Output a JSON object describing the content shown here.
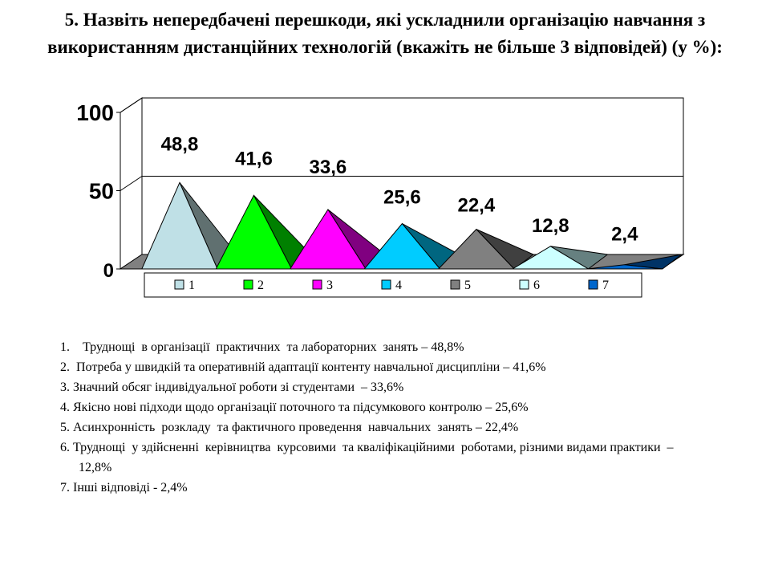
{
  "title": "5. Назвіть непередбачені перешкоди, які ускладнили організацію навчання з використанням дистанційних технологій (вкажіть не більше 3 відповідей) (у %):",
  "chart_data": {
    "type": "area",
    "style": "3d-pyramid",
    "categories": [
      "1",
      "2",
      "3",
      "4",
      "5",
      "6",
      "7"
    ],
    "values": [
      48.8,
      41.6,
      33.6,
      25.6,
      22.4,
      12.8,
      2.4
    ],
    "value_labels": [
      "48,8",
      "41,6",
      "33,6",
      "25,6",
      "22,4",
      "12,8",
      "2,4"
    ],
    "y_ticks": [
      "0",
      "50",
      "100"
    ],
    "ylim": [
      0,
      100
    ],
    "grid": true,
    "legend": "bottom",
    "colors": [
      "#BFE0E6",
      "#00FF00",
      "#FF00FF",
      "#00CCFF",
      "#808080",
      "#CCFFFF",
      "#0066CC"
    ],
    "dark_colors": [
      "#607070",
      "#008000",
      "#800080",
      "#006680",
      "#404040",
      "#668080",
      "#003366"
    ]
  },
  "items": [
    "1.    Труднощі  в організації  практичних  та лабораторних  занять – 48,8%",
    "2.  Потреба у швидкій та оперативній адаптації контенту навчальної дисципліни – 41,6%",
    "3. Значний обсяг індивідуальної роботи зі студентами  – 33,6%",
    "4. Якісно нові підходи щодо організації поточного та підсумкового контролю – 25,6%",
    "5. Асинхронність  розкладу  та фактичного проведення  навчальних  занять – 22,4%",
    "6. Труднощі  у здійсненні  керівництва  курсовими  та кваліфікаційними  роботами, різними видами практики  – 12,8%",
    "7. Інші відповіді - 2,4%"
  ]
}
